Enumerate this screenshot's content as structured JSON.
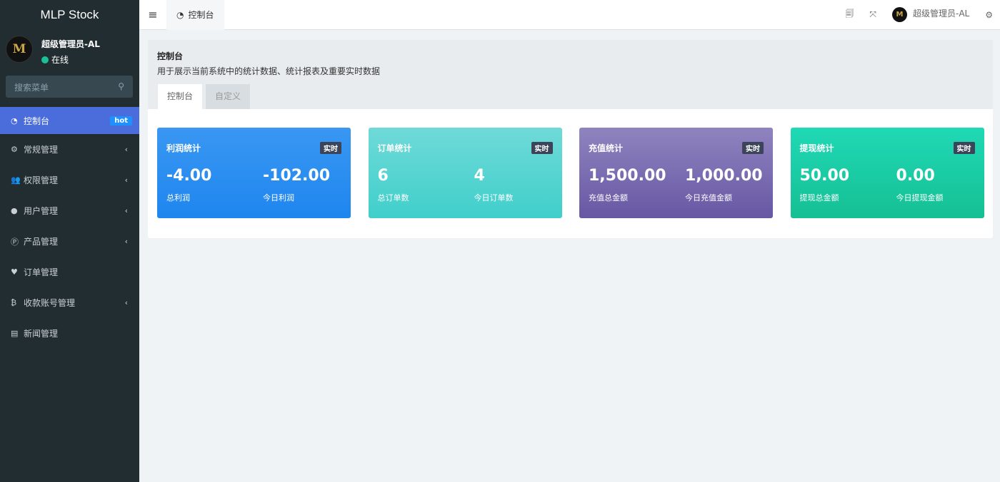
{
  "brand": "MLP Stock",
  "user": {
    "name": "超级管理员-AL",
    "status": "在线",
    "avatar_letter": "M"
  },
  "search": {
    "placeholder": "搜索菜单"
  },
  "menu": [
    {
      "label": "控制台",
      "icon": "dashboard-icon",
      "badge": "hot"
    },
    {
      "label": "常规管理",
      "icon": "cogs-icon"
    },
    {
      "label": "权限管理",
      "icon": "users-icon"
    },
    {
      "label": "用户管理",
      "icon": "user-circle-icon"
    },
    {
      "label": "产品管理",
      "icon": "product-p-icon"
    },
    {
      "label": "订单管理",
      "icon": "heartbeat-icon"
    },
    {
      "label": "收款账号管理",
      "icon": "bitcoin-icon"
    },
    {
      "label": "新闻管理",
      "icon": "newspaper-icon"
    }
  ],
  "topbar": {
    "tab": "控制台",
    "user": "超级管理员-AL"
  },
  "panel": {
    "title": "控制台",
    "desc": "用于展示当前系统中的统计数据、统计报表及重要实时数据",
    "tabs": [
      "控制台",
      "自定义"
    ]
  },
  "cards": [
    {
      "title": "利润统计",
      "badge": "实时",
      "v1": "-4.00",
      "l1": "总利润",
      "v2": "-102.00",
      "l2": "今日利润",
      "color": "#2f8ff0"
    },
    {
      "title": "订单统计",
      "badge": "实时",
      "v1": "6",
      "l1": "总订单数",
      "v2": "4",
      "l2": "今日订单数",
      "color": "#4fd0cf"
    },
    {
      "title": "充值统计",
      "badge": "实时",
      "v1": "1,500.00",
      "l1": "充值总金额",
      "v2": "1,000.00",
      "l2": "今日充值金额",
      "color": "#7b6fb3"
    },
    {
      "title": "提现统计",
      "badge": "实时",
      "v1": "50.00",
      "l1": "提现总金额",
      "v2": "0.00",
      "l2": "今日提现金额",
      "color": "#1bcfa6"
    }
  ]
}
